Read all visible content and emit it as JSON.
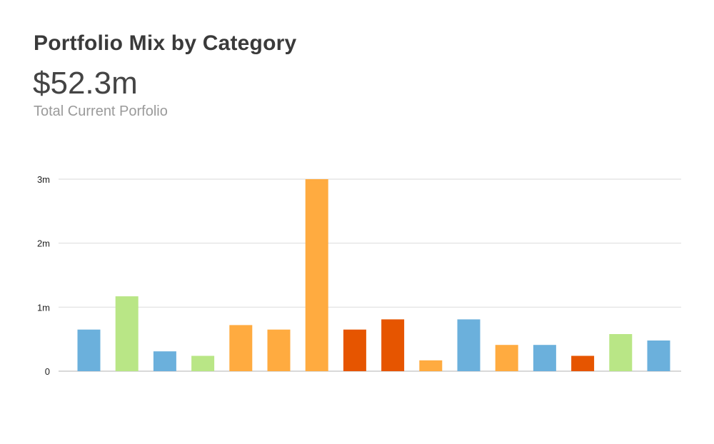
{
  "header": {
    "title": "Portfolio Mix by Category",
    "total": "$52.3m",
    "subtitle": "Total Current Porfolio"
  },
  "chart_data": {
    "type": "bar",
    "title": "Portfolio Mix by Category",
    "xlabel": "",
    "ylabel": "",
    "ylim": [
      0,
      3
    ],
    "yticks": [
      {
        "value": 0,
        "label": "0"
      },
      {
        "value": 1,
        "label": "1m"
      },
      {
        "value": 2,
        "label": "2m"
      },
      {
        "value": 3,
        "label": "3m"
      }
    ],
    "grid": true,
    "legend": "none",
    "values": [
      0.65,
      1.17,
      0.31,
      0.24,
      0.72,
      0.65,
      3.0,
      0.65,
      0.81,
      0.17,
      0.81,
      0.41,
      0.41,
      0.24,
      0.58,
      0.48
    ],
    "colors": [
      "#6bb0dc",
      "#b9e686",
      "#6bb0dc",
      "#b9e686",
      "#ffab40",
      "#ffab40",
      "#ffab40",
      "#e65500",
      "#e65500",
      "#ffab40",
      "#6bb0dc",
      "#ffab40",
      "#6bb0dc",
      "#e65500",
      "#b9e686",
      "#6bb0dc"
    ]
  }
}
